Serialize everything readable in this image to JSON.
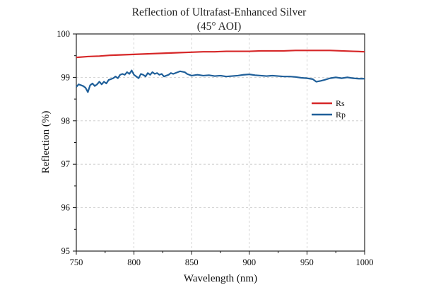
{
  "chart_data": {
    "type": "line",
    "title": [
      "Reflection of Ultrafast-Enhanced Silver",
      "(45° AOI)"
    ],
    "xlabel": "Wavelength (nm)",
    "ylabel": "Reflection (%)",
    "xlim": [
      750,
      1000
    ],
    "ylim": [
      95,
      100
    ],
    "xticks": [
      750,
      800,
      850,
      900,
      950,
      1000
    ],
    "yticks": [
      95,
      96,
      97,
      98,
      99,
      100
    ],
    "grid": true,
    "legend_position": "right, middle-upper",
    "series": [
      {
        "name": "Rs",
        "color": "#d62728",
        "points": [
          [
            750,
            99.46
          ],
          [
            760,
            99.48
          ],
          [
            770,
            99.49
          ],
          [
            780,
            99.51
          ],
          [
            790,
            99.52
          ],
          [
            800,
            99.53
          ],
          [
            810,
            99.54
          ],
          [
            820,
            99.55
          ],
          [
            830,
            99.56
          ],
          [
            840,
            99.57
          ],
          [
            850,
            99.58
          ],
          [
            860,
            99.59
          ],
          [
            870,
            99.59
          ],
          [
            880,
            99.6
          ],
          [
            890,
            99.6
          ],
          [
            900,
            99.6
          ],
          [
            910,
            99.61
          ],
          [
            920,
            99.61
          ],
          [
            930,
            99.61
          ],
          [
            940,
            99.62
          ],
          [
            950,
            99.62
          ],
          [
            960,
            99.62
          ],
          [
            970,
            99.62
          ],
          [
            980,
            99.61
          ],
          [
            990,
            99.6
          ],
          [
            1000,
            99.59
          ]
        ]
      },
      {
        "name": "Rp",
        "color": "#1f5f99",
        "points": [
          [
            750,
            98.78
          ],
          [
            752,
            98.84
          ],
          [
            754,
            98.82
          ],
          [
            756,
            98.8
          ],
          [
            758,
            98.76
          ],
          [
            760,
            98.66
          ],
          [
            762,
            98.82
          ],
          [
            764,
            98.86
          ],
          [
            766,
            98.8
          ],
          [
            768,
            98.84
          ],
          [
            770,
            98.9
          ],
          [
            772,
            98.84
          ],
          [
            774,
            98.9
          ],
          [
            776,
            98.86
          ],
          [
            778,
            98.94
          ],
          [
            780,
            98.96
          ],
          [
            782,
            98.98
          ],
          [
            784,
            99.02
          ],
          [
            786,
            98.98
          ],
          [
            788,
            99.06
          ],
          [
            790,
            99.08
          ],
          [
            792,
            99.06
          ],
          [
            794,
            99.12
          ],
          [
            796,
            99.08
          ],
          [
            798,
            99.16
          ],
          [
            800,
            99.06
          ],
          [
            802,
            99.02
          ],
          [
            804,
            98.98
          ],
          [
            806,
            99.08
          ],
          [
            808,
            99.06
          ],
          [
            810,
            99.02
          ],
          [
            812,
            99.1
          ],
          [
            814,
            99.06
          ],
          [
            816,
            99.12
          ],
          [
            818,
            99.08
          ],
          [
            820,
            99.1
          ],
          [
            822,
            99.06
          ],
          [
            824,
            99.08
          ],
          [
            826,
            99.02
          ],
          [
            828,
            99.04
          ],
          [
            830,
            99.06
          ],
          [
            832,
            99.1
          ],
          [
            834,
            99.08
          ],
          [
            836,
            99.1
          ],
          [
            838,
            99.12
          ],
          [
            840,
            99.14
          ],
          [
            842,
            99.13
          ],
          [
            844,
            99.12
          ],
          [
            846,
            99.08
          ],
          [
            848,
            99.06
          ],
          [
            850,
            99.04
          ],
          [
            855,
            99.06
          ],
          [
            860,
            99.04
          ],
          [
            865,
            99.05
          ],
          [
            870,
            99.03
          ],
          [
            875,
            99.04
          ],
          [
            880,
            99.02
          ],
          [
            885,
            99.03
          ],
          [
            890,
            99.04
          ],
          [
            895,
            99.06
          ],
          [
            900,
            99.07
          ],
          [
            905,
            99.05
          ],
          [
            910,
            99.04
          ],
          [
            915,
            99.03
          ],
          [
            920,
            99.04
          ],
          [
            925,
            99.03
          ],
          [
            930,
            99.02
          ],
          [
            935,
            99.02
          ],
          [
            940,
            99.01
          ],
          [
            945,
            98.99
          ],
          [
            950,
            98.98
          ],
          [
            955,
            98.96
          ],
          [
            958,
            98.9
          ],
          [
            962,
            98.92
          ],
          [
            965,
            98.94
          ],
          [
            970,
            98.98
          ],
          [
            975,
            99.0
          ],
          [
            980,
            98.98
          ],
          [
            985,
            99.0
          ],
          [
            990,
            98.98
          ],
          [
            995,
            98.97
          ],
          [
            1000,
            98.97
          ]
        ]
      }
    ]
  }
}
